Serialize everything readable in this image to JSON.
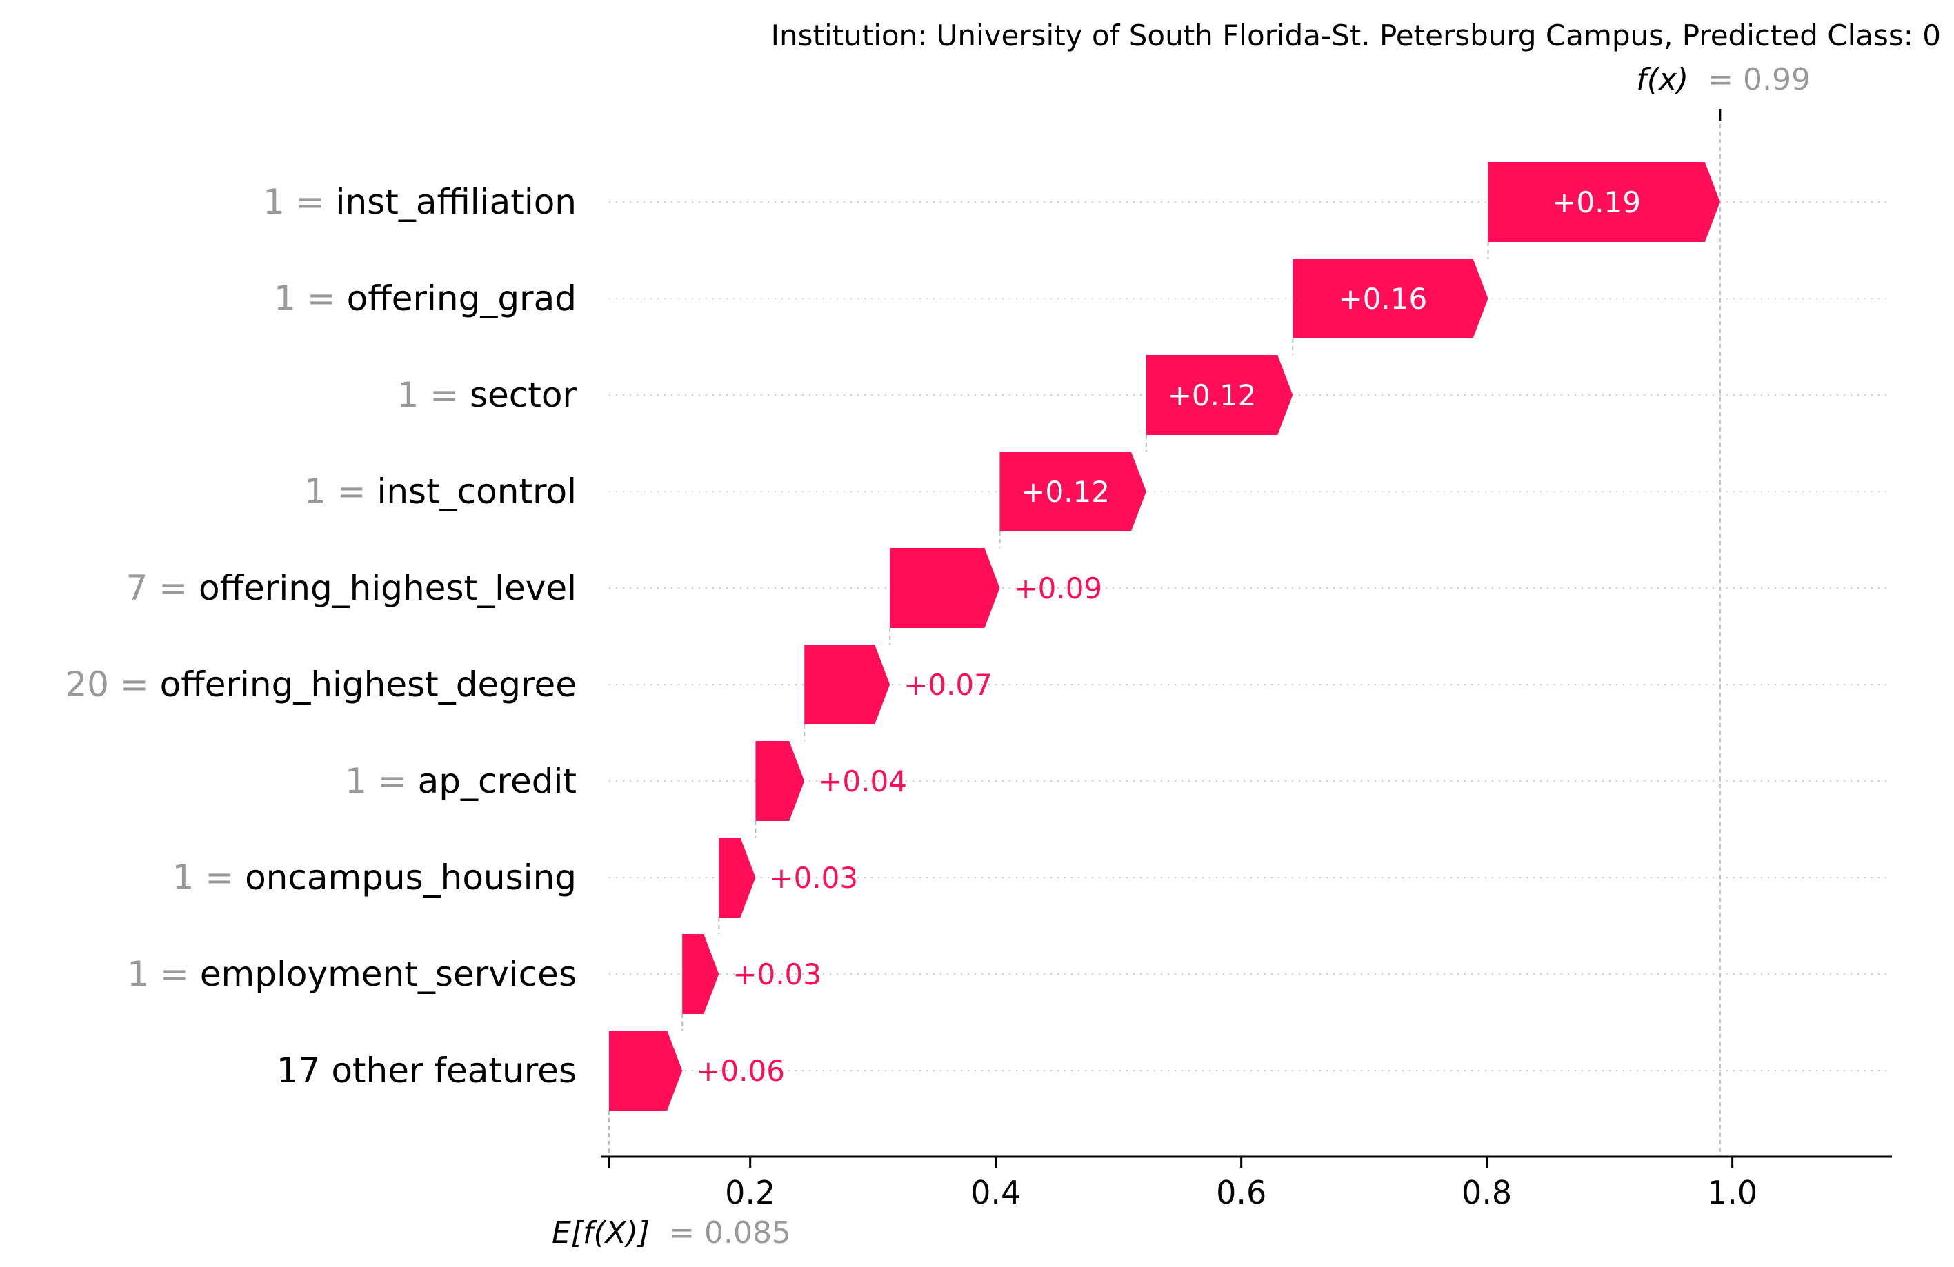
{
  "chart_data": {
    "type": "waterfall",
    "title": "Institution: University of South Florida-St. Petersburg Campus, Predicted Class: 0",
    "base_value": 0.085,
    "base_label": "= 0.085",
    "output_value": 0.99,
    "output_label": "= 0.99",
    "fx_symbol": "f(x)",
    "efx_symbol": "E[f(X)]",
    "xlim": [
      0.085,
      1.13
    ],
    "xticks": [
      0.2,
      0.4,
      0.6,
      0.8,
      1.0
    ],
    "xtick_labels": [
      "0.2",
      "0.4",
      "0.6",
      "0.8",
      "1.0"
    ],
    "positive_color": "#ff0d57",
    "features": [
      {
        "value": "1",
        "name": "inst_affiliation",
        "contribution": 0.19,
        "label": "+0.19"
      },
      {
        "value": "1",
        "name": "offering_grad",
        "contribution": 0.16,
        "label": "+0.16"
      },
      {
        "value": "1",
        "name": "sector",
        "contribution": 0.12,
        "label": "+0.12"
      },
      {
        "value": "1",
        "name": "inst_control",
        "contribution": 0.12,
        "label": "+0.12"
      },
      {
        "value": "7",
        "name": "offering_highest_level",
        "contribution": 0.09,
        "label": "+0.09"
      },
      {
        "value": "20",
        "name": "offering_highest_degree",
        "contribution": 0.07,
        "label": "+0.07"
      },
      {
        "value": "1",
        "name": "ap_credit",
        "contribution": 0.04,
        "label": "+0.04"
      },
      {
        "value": "1",
        "name": "oncampus_housing",
        "contribution": 0.03,
        "label": "+0.03"
      },
      {
        "value": "1",
        "name": "employment_services",
        "contribution": 0.03,
        "label": "+0.03"
      },
      {
        "value": "",
        "name": "17 other features",
        "contribution": 0.06,
        "label": "+0.06"
      }
    ]
  }
}
